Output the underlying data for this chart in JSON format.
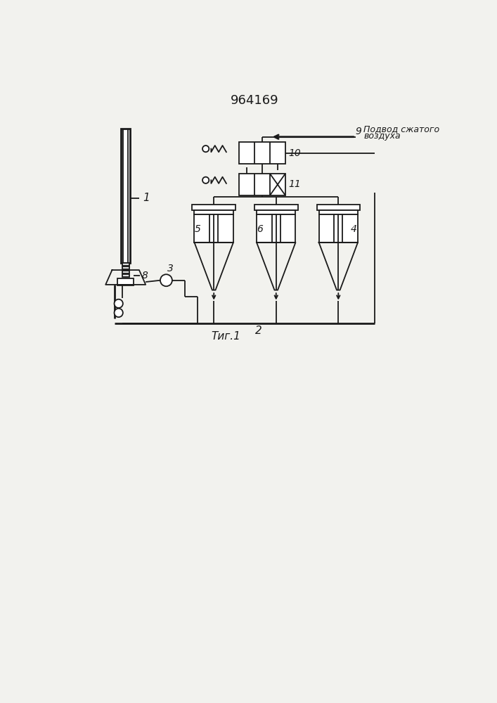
{
  "title": "964169",
  "fig_label": "Τиг.1",
  "annotation_line1": "Подвод сжатого",
  "annotation_line2": "воздуха",
  "bg_color": "#f2f2ee",
  "line_color": "#1a1a1a",
  "lw": 1.3,
  "lw2": 2.0
}
